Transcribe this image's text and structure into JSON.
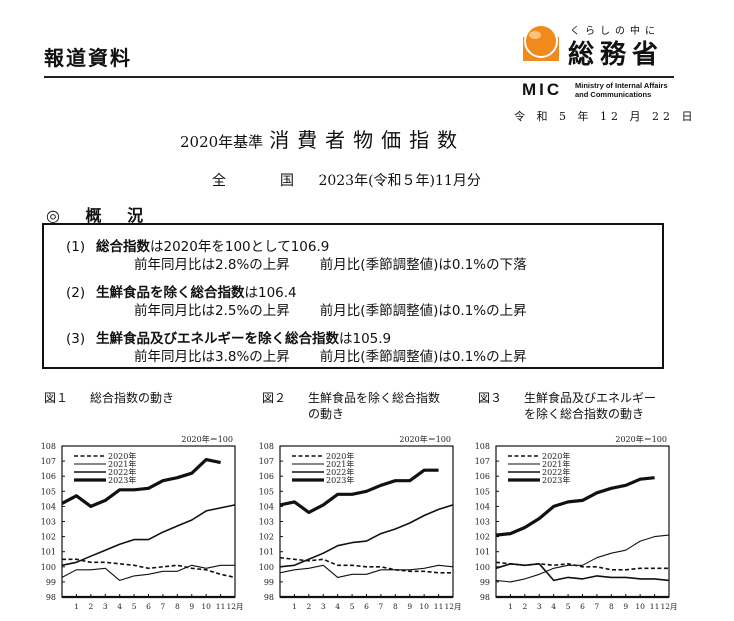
{
  "header": {
    "release_label": "報道資料",
    "org_tagline": "くらしの中に",
    "org_name": "総務省",
    "org_abbr": "MIC",
    "org_en_line1": "Ministry of Internal Affairs",
    "org_en_line2": "and Communications",
    "date": "令 和 5 年 12 月 22 日",
    "logo_color": "#f08a1c"
  },
  "title": {
    "base": "2020年基準",
    "main": "消費者物価指数"
  },
  "subtitle": {
    "region": "全　国",
    "period": "2023年(令和５年)11月分"
  },
  "overview": {
    "heading": "◎ 概 況",
    "items": [
      {
        "num": "(1)",
        "name": "総合指数",
        "desc": "は2020年を100として106.9",
        "yoy": "前年同月比は2.8%の上昇",
        "mom": "前月比(季節調整値)は0.1%の下落"
      },
      {
        "num": "(2)",
        "name": "生鮮食品を除く総合指数",
        "desc": "は106.4",
        "yoy": "前年同月比は2.5%の上昇",
        "mom": "前月比(季節調整値)は0.1%の上昇"
      },
      {
        "num": "(3)",
        "name": "生鮮食品及びエネルギーを除く総合指数",
        "desc": "は105.9",
        "yoy": "前年同月比は3.8%の上昇",
        "mom": "前月比(季節調整値)は0.1%の上昇"
      }
    ]
  },
  "figures": [
    {
      "num": "図１",
      "title_line1": "総合指数の動き",
      "title_line2": ""
    },
    {
      "num": "図２",
      "title_line1": "生鮮食品を除く総合指数",
      "title_line2": "の動き"
    },
    {
      "num": "図３",
      "title_line1": "生鮮食品及びエネルギー",
      "title_line2": "を除く総合指数の動き"
    }
  ],
  "chart_data": [
    {
      "type": "line",
      "title": "総合指数の動き",
      "base_note": "2020年＝100",
      "xlabel": "月",
      "x": [
        0,
        1,
        2,
        3,
        4,
        5,
        6,
        7,
        8,
        9,
        10,
        11,
        12
      ],
      "x_tick_labels": [
        "1",
        "2",
        "3",
        "4",
        "5",
        "6",
        "7",
        "8",
        "9",
        "10",
        "11",
        "12月"
      ],
      "ylim": [
        98,
        108
      ],
      "y_ticks": [
        98,
        99,
        100,
        101,
        102,
        103,
        104,
        105,
        106,
        107,
        108
      ],
      "legend_position": "upper-left",
      "series": [
        {
          "name": "2020年",
          "style": "dashed",
          "values": [
            100.5,
            100.5,
            100.3,
            100.3,
            100.2,
            100.1,
            99.9,
            100.0,
            100.1,
            99.9,
            99.8,
            99.5,
            99.3
          ]
        },
        {
          "name": "2021年",
          "style": "thin",
          "values": [
            99.3,
            99.8,
            99.8,
            99.9,
            99.1,
            99.4,
            99.5,
            99.7,
            99.7,
            100.1,
            99.9,
            100.1,
            100.1
          ]
        },
        {
          "name": "2022年",
          "style": "medium",
          "values": [
            100.1,
            100.3,
            100.7,
            101.1,
            101.5,
            101.8,
            101.8,
            102.3,
            102.7,
            103.1,
            103.7,
            103.9,
            104.1
          ]
        },
        {
          "name": "2023年",
          "style": "bold",
          "values": [
            104.2,
            104.7,
            104.0,
            104.4,
            105.1,
            105.1,
            105.2,
            105.7,
            105.9,
            106.2,
            107.1,
            106.9
          ]
        }
      ]
    },
    {
      "type": "line",
      "title": "生鮮食品を除く総合指数の動き",
      "base_note": "2020年＝100",
      "xlabel": "月",
      "x": [
        0,
        1,
        2,
        3,
        4,
        5,
        6,
        7,
        8,
        9,
        10,
        11,
        12
      ],
      "x_tick_labels": [
        "1",
        "2",
        "3",
        "4",
        "5",
        "6",
        "7",
        "8",
        "9",
        "10",
        "11",
        "12月"
      ],
      "ylim": [
        98,
        108
      ],
      "y_ticks": [
        98,
        99,
        100,
        101,
        102,
        103,
        104,
        105,
        106,
        107,
        108
      ],
      "legend_position": "upper-left",
      "series": [
        {
          "name": "2020年",
          "style": "dashed",
          "values": [
            100.6,
            100.5,
            100.4,
            100.5,
            100.1,
            100.1,
            100.0,
            100.0,
            99.8,
            99.7,
            99.7,
            99.6,
            99.6
          ]
        },
        {
          "name": "2021年",
          "style": "thin",
          "values": [
            99.6,
            99.8,
            99.9,
            100.1,
            99.3,
            99.5,
            99.5,
            99.8,
            99.8,
            99.8,
            99.9,
            100.1,
            100.0
          ]
        },
        {
          "name": "2022年",
          "style": "medium",
          "values": [
            100.0,
            100.1,
            100.5,
            100.9,
            101.4,
            101.6,
            101.7,
            102.2,
            102.5,
            102.9,
            103.4,
            103.8,
            104.1
          ]
        },
        {
          "name": "2023年",
          "style": "bold",
          "values": [
            104.1,
            104.3,
            103.6,
            104.1,
            104.8,
            104.8,
            105.0,
            105.4,
            105.7,
            105.7,
            106.4,
            106.4
          ]
        }
      ]
    },
    {
      "type": "line",
      "title": "生鮮食品及びエネルギーを除く総合指数の動き",
      "base_note": "2020年＝100",
      "xlabel": "月",
      "x": [
        0,
        1,
        2,
        3,
        4,
        5,
        6,
        7,
        8,
        9,
        10,
        11,
        12
      ],
      "x_tick_labels": [
        "1",
        "2",
        "3",
        "4",
        "5",
        "6",
        "7",
        "8",
        "9",
        "10",
        "11",
        "12月"
      ],
      "ylim": [
        98,
        108
      ],
      "y_ticks": [
        98,
        99,
        100,
        101,
        102,
        103,
        104,
        105,
        106,
        107,
        108
      ],
      "legend_position": "upper-left",
      "series": [
        {
          "name": "2020年",
          "style": "dashed",
          "values": [
            100.3,
            100.2,
            100.1,
            100.2,
            100.1,
            100.2,
            100.0,
            100.0,
            99.8,
            99.8,
            99.9,
            99.9,
            99.9
          ]
        },
        {
          "name": "2021年",
          "style": "thin",
          "values": [
            99.1,
            99.0,
            99.2,
            99.5,
            99.9,
            100.1,
            100.1,
            100.6,
            100.9,
            101.1,
            101.7,
            102.0,
            102.1
          ]
        },
        {
          "name": "2022年",
          "style": "medium",
          "values": [
            99.9,
            100.2,
            100.1,
            100.2,
            99.1,
            99.3,
            99.2,
            99.4,
            99.3,
            99.3,
            99.2,
            99.2,
            99.1
          ]
        },
        {
          "name": "2023年",
          "style": "bold",
          "values": [
            102.1,
            102.2,
            102.6,
            103.2,
            104.0,
            104.3,
            104.4,
            104.9,
            105.2,
            105.4,
            105.8,
            105.9
          ]
        }
      ]
    }
  ]
}
